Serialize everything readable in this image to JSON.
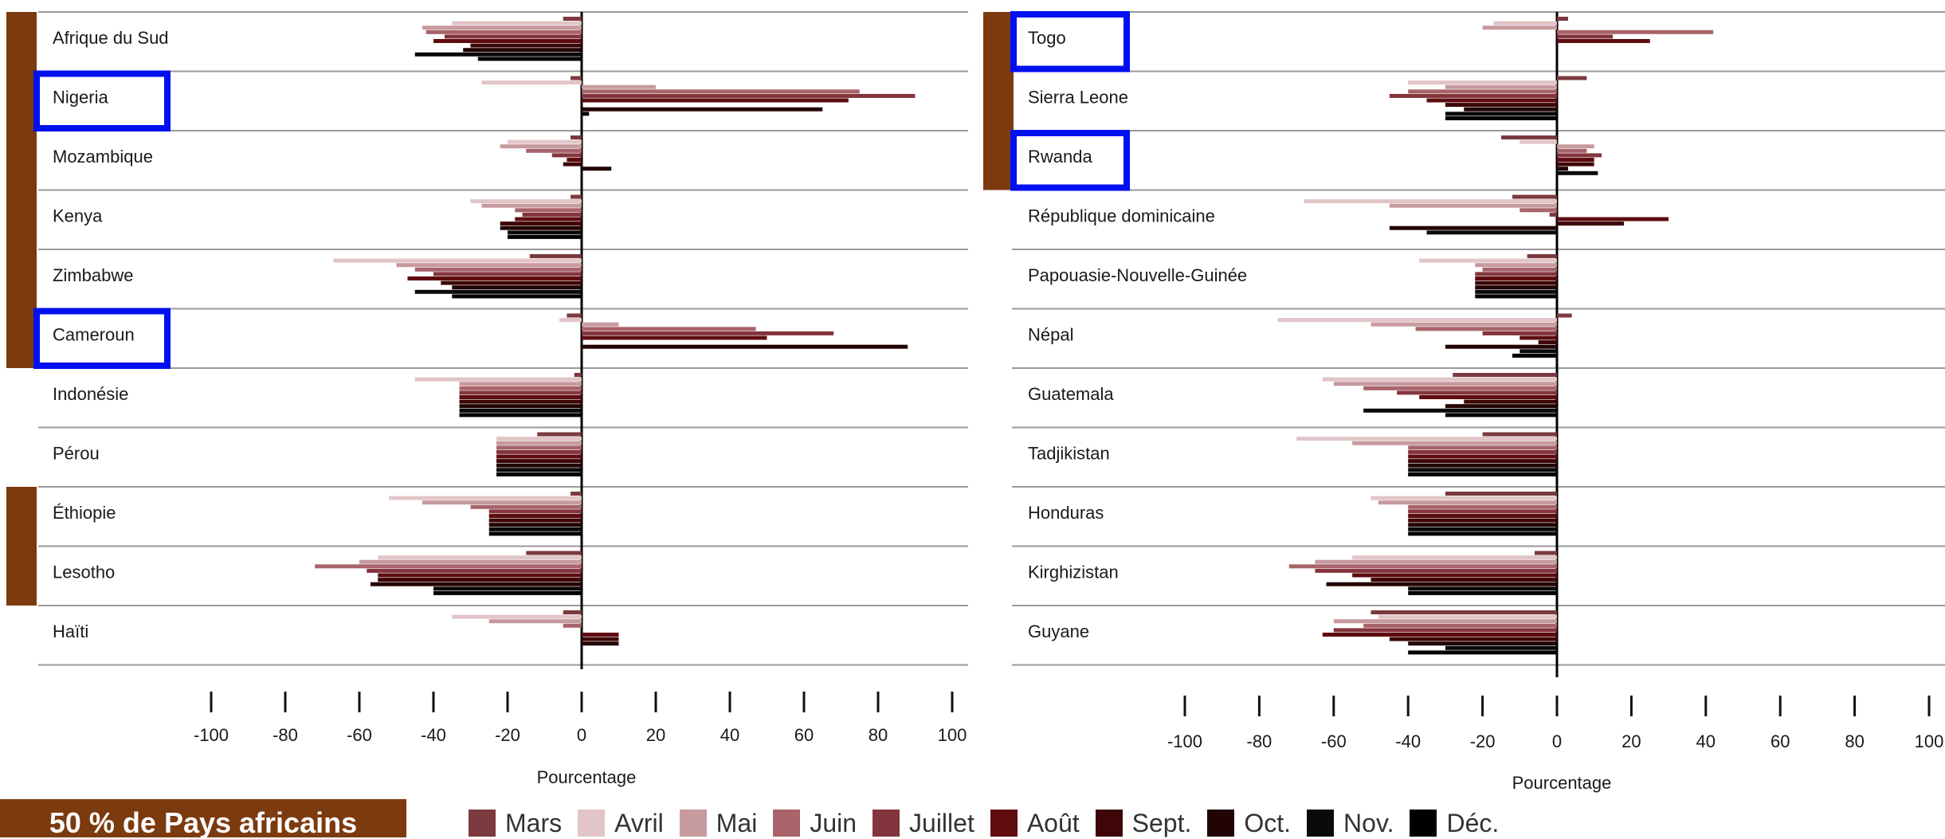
{
  "highlight_badge": "50 % de Pays africains",
  "colors": {
    "african_bar": "#7c3a0f",
    "highlight_box": "#0010f0",
    "months": [
      "#7a3a3e",
      "#e2c5c8",
      "#c79a9e",
      "#a8646a",
      "#84343c",
      "#5e0c10",
      "#3e0606",
      "#220404",
      "#0a0a0a",
      "#000000"
    ]
  },
  "legend": [
    "Mars",
    "Avril",
    "Mai",
    "Juin",
    "Juillet",
    "Août",
    "Sept.",
    "Oct.",
    "Nov.",
    "Déc."
  ],
  "chart_data": [
    {
      "type": "bar",
      "orientation": "horizontal",
      "xlabel": "Pourcentage",
      "xlim": [
        -100,
        100
      ],
      "xticks": [
        -100,
        -80,
        -60,
        -40,
        -20,
        0,
        20,
        40,
        60,
        80,
        100
      ],
      "series_names": [
        "Mars",
        "Avril",
        "Mai",
        "Juin",
        "Juillet",
        "Août",
        "Sept.",
        "Oct.",
        "Nov.",
        "Déc."
      ],
      "categories": [
        "Afrique  du Sud",
        "Nigeria",
        "Mozambique",
        "Kenya",
        "Zimbabwe",
        "Cameroun",
        "Indonésie",
        "Pérou",
        "Éthiopie",
        "Lesotho",
        "Haïti"
      ],
      "african": [
        true,
        true,
        true,
        true,
        true,
        true,
        false,
        false,
        true,
        true,
        false
      ],
      "highlighted": [
        false,
        true,
        false,
        false,
        false,
        true,
        false,
        false,
        false,
        false,
        false
      ],
      "values": [
        [
          -5,
          -35,
          -43,
          -42,
          -37,
          -40,
          -30,
          -32,
          -45,
          -28
        ],
        [
          -3,
          -27,
          20,
          75,
          90,
          72,
          0,
          65,
          2,
          0
        ],
        [
          -3,
          -20,
          -22,
          -15,
          -8,
          -4,
          -5,
          8,
          0,
          0
        ],
        [
          -3,
          -30,
          -27,
          -18,
          -16,
          -18,
          -22,
          -22,
          -20,
          -20
        ],
        [
          -14,
          -67,
          -50,
          -45,
          -40,
          -47,
          -38,
          -35,
          -45,
          -35
        ],
        [
          -4,
          -6,
          10,
          47,
          68,
          50,
          0,
          88,
          0,
          0
        ],
        [
          -2,
          -45,
          -33,
          -33,
          -33,
          -33,
          -33,
          -33,
          -33,
          -33
        ],
        [
          -12,
          -23,
          -23,
          -23,
          -23,
          -23,
          -23,
          -23,
          -23,
          -23
        ],
        [
          -3,
          -52,
          -43,
          -30,
          -25,
          -25,
          -25,
          -25,
          -25,
          -25
        ],
        [
          -15,
          -55,
          -60,
          -72,
          -58,
          -55,
          -55,
          -57,
          -40,
          -40
        ],
        [
          -5,
          -35,
          -25,
          -5,
          0,
          10,
          10,
          10,
          0,
          0
        ]
      ]
    },
    {
      "type": "bar",
      "orientation": "horizontal",
      "xlabel": "Pourcentage",
      "xlim": [
        -100,
        100
      ],
      "xticks": [
        -100,
        -80,
        -60,
        -40,
        -20,
        0,
        20,
        40,
        60,
        80,
        100
      ],
      "series_names": [
        "Mars",
        "Avril",
        "Mai",
        "Juin",
        "Juillet",
        "Août",
        "Sept.",
        "Oct.",
        "Nov.",
        "Déc."
      ],
      "categories": [
        "Togo",
        "Sierra Leone",
        "Rwanda",
        "République dominicaine",
        "Papouasie-Nouvelle-Guinée",
        "Népal",
        "Guatemala",
        "Tadjikistan",
        "Honduras",
        "Kirghizistan",
        "Guyane"
      ],
      "african": [
        true,
        true,
        true,
        false,
        false,
        false,
        false,
        false,
        false,
        false,
        false
      ],
      "highlighted": [
        true,
        false,
        true,
        false,
        false,
        false,
        false,
        false,
        false,
        false,
        false
      ],
      "values": [
        [
          3,
          -17,
          -20,
          42,
          15,
          25,
          0,
          0,
          0,
          0
        ],
        [
          8,
          -40,
          -30,
          -40,
          -45,
          -35,
          -30,
          -25,
          -30,
          -30
        ],
        [
          -15,
          -10,
          10,
          8,
          12,
          10,
          10,
          3,
          11,
          0
        ],
        [
          -12,
          -68,
          -45,
          -10,
          -2,
          30,
          18,
          -45,
          -35,
          0
        ],
        [
          -8,
          -37,
          -22,
          -20,
          -22,
          -22,
          -22,
          -22,
          -22,
          -22
        ],
        [
          4,
          -75,
          -50,
          -38,
          -20,
          -10,
          -5,
          -30,
          -10,
          -12
        ],
        [
          -28,
          -63,
          -60,
          -52,
          -43,
          -37,
          -25,
          -30,
          -52,
          -30
        ],
        [
          -20,
          -70,
          -55,
          -40,
          -40,
          -40,
          -40,
          -40,
          -40,
          -40
        ],
        [
          -30,
          -50,
          -48,
          -40,
          -40,
          -40,
          -40,
          -40,
          -40,
          -40
        ],
        [
          -6,
          -55,
          -65,
          -72,
          -65,
          -55,
          -50,
          -62,
          -40,
          -40
        ],
        [
          -50,
          -48,
          -60,
          -52,
          -60,
          -63,
          -45,
          -40,
          -30,
          -40
        ]
      ]
    }
  ]
}
